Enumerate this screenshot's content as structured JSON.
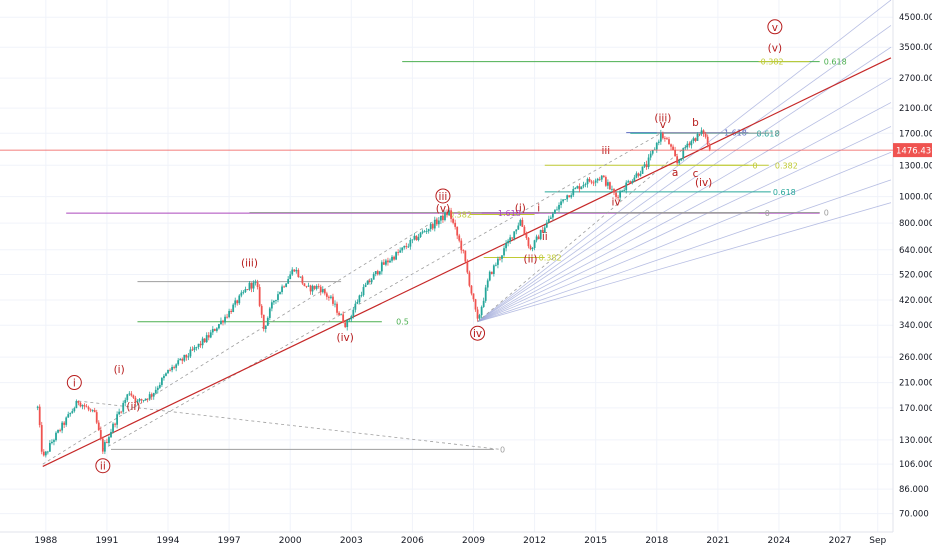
{
  "colors": {
    "background": "#ffffff",
    "grid": "#f0f3fa",
    "wave_label": "#b71c1c",
    "trendline": "#c62828",
    "price_line": "#ef5350",
    "price_tag_bg": "#ef5350",
    "candle_up": "#26a69a",
    "candle_down": "#ef5350",
    "axis_text": "#131722",
    "fib_gray": "#9e9e9e",
    "fib_green": "#4caf50",
    "fib_yellow": "#c0ca33",
    "fib_teal": "#26a69a",
    "fib_blue": "#5c6bc0",
    "fib_purple": "#ab47bc",
    "fan_line": "#9fa8da",
    "dash_line": "#9e9e9e"
  },
  "chart_data": {
    "type": "line",
    "scale": "log",
    "x_ticks": [
      "1988",
      "1991",
      "1994",
      "1997",
      "2000",
      "2003",
      "2006",
      "2009",
      "2012",
      "2015",
      "2018",
      "2021",
      "2024",
      "2027",
      "Sep"
    ],
    "y_ticks": [
      "4500.000",
      "3500.000",
      "2700.000",
      "2100.000",
      "1700.000",
      "1300.000",
      "1000.000",
      "800.000",
      "640.000",
      "520.000",
      "420.000",
      "340.000",
      "260.000",
      "210.000",
      "170.000",
      "130.000",
      "106.000",
      "86.000",
      "70.000"
    ],
    "ylim": [
      60,
      5200
    ],
    "current_price": {
      "label": "1476.431",
      "value": 1476.431
    },
    "series": [
      {
        "points": [
          [
            1987.6,
            170
          ],
          [
            1987.85,
            110
          ],
          [
            1988.3,
            128
          ],
          [
            1989.6,
            180
          ],
          [
            1990.4,
            160
          ],
          [
            1990.8,
            120
          ],
          [
            1991.5,
            158
          ],
          [
            1992.1,
            195
          ],
          [
            1992.5,
            178
          ],
          [
            1993.2,
            190
          ],
          [
            1994.0,
            230
          ],
          [
            1995.0,
            265
          ],
          [
            1996.0,
            310
          ],
          [
            1997.0,
            380
          ],
          [
            1998.0,
            475
          ],
          [
            1998.35,
            480
          ],
          [
            1998.7,
            330
          ],
          [
            1999.2,
            420
          ],
          [
            2000.2,
            550
          ],
          [
            2000.8,
            460
          ],
          [
            2001.4,
            470
          ],
          [
            2002.0,
            420
          ],
          [
            2002.75,
            340
          ],
          [
            2003.5,
            450
          ],
          [
            2004.5,
            560
          ],
          [
            2005.5,
            640
          ],
          [
            2006.5,
            740
          ],
          [
            2007.5,
            840
          ],
          [
            2007.8,
            880
          ],
          [
            2008.5,
            620
          ],
          [
            2009.2,
            350
          ],
          [
            2009.8,
            520
          ],
          [
            2010.5,
            640
          ],
          [
            2011.3,
            820
          ],
          [
            2011.8,
            640
          ],
          [
            2012.5,
            780
          ],
          [
            2013.5,
            1000
          ],
          [
            2014.5,
            1130
          ],
          [
            2015.3,
            1180
          ],
          [
            2016.0,
            1000
          ],
          [
            2016.6,
            1130
          ],
          [
            2017.5,
            1300
          ],
          [
            2018.2,
            1680
          ],
          [
            2018.6,
            1560
          ],
          [
            2019.0,
            1320
          ],
          [
            2019.5,
            1560
          ],
          [
            2020.3,
            1720
          ],
          [
            2020.6,
            1476.431
          ]
        ]
      }
    ],
    "trendline": {
      "from": [
        1987.85,
        104
      ],
      "to": [
        2029.5,
        3200
      ]
    },
    "wave_labels": [
      {
        "text": "i",
        "x": 1989.4,
        "y": 205,
        "circled": true
      },
      {
        "text": "ii",
        "x": 1990.8,
        "y": 102,
        "circled": true
      },
      {
        "text": "(i)",
        "x": 1991.6,
        "y": 230,
        "circled": false
      },
      {
        "text": "(ii)",
        "x": 1992.3,
        "y": 168,
        "circled": false
      },
      {
        "text": "(iii)",
        "x": 1998.0,
        "y": 560,
        "circled": false
      },
      {
        "text": "(iv)",
        "x": 2002.7,
        "y": 300,
        "circled": false
      },
      {
        "text": "iii",
        "x": 2007.5,
        "y": 980,
        "circled": true
      },
      {
        "text": "(v)",
        "x": 2007.5,
        "y": 885,
        "circled": false
      },
      {
        "text": "iv",
        "x": 2009.2,
        "y": 310,
        "circled": true
      },
      {
        "text": "(i)",
        "x": 2011.3,
        "y": 890,
        "circled": false
      },
      {
        "text": "i",
        "x": 2012.2,
        "y": 890,
        "circled": false
      },
      {
        "text": "ii",
        "x": 2012.5,
        "y": 700,
        "circled": false
      },
      {
        "text": "(ii)",
        "x": 2011.8,
        "y": 580,
        "circled": false
      },
      {
        "text": "iii",
        "x": 2015.5,
        "y": 1440,
        "circled": false
      },
      {
        "text": "iv",
        "x": 2016.0,
        "y": 935,
        "circled": false
      },
      {
        "text": "(iii)",
        "x": 2018.3,
        "y": 1890,
        "circled": false
      },
      {
        "text": "v",
        "x": 2018.3,
        "y": 1790,
        "circled": false
      },
      {
        "text": "a",
        "x": 2018.9,
        "y": 1200,
        "circled": false
      },
      {
        "text": "b",
        "x": 2019.9,
        "y": 1820,
        "circled": false
      },
      {
        "text": "c",
        "x": 2019.9,
        "y": 1190,
        "circled": false
      },
      {
        "text": "(iv)",
        "x": 2020.3,
        "y": 1100,
        "circled": false
      },
      {
        "text": "v",
        "x": 2023.8,
        "y": 4050,
        "circled": true
      },
      {
        "text": "(v)",
        "x": 2023.8,
        "y": 3400,
        "circled": false
      }
    ],
    "fib_lines": [
      {
        "x1": 1991.2,
        "x2": 2010.0,
        "y": 120,
        "label": "0",
        "label_x": 2010.3,
        "color": "fib_gray"
      },
      {
        "x1": 1992.5,
        "x2": 2002.5,
        "y": 490,
        "label": "0",
        "label_x": 2003.8,
        "color": "fib_gray"
      },
      {
        "x1": 1992.5,
        "x2": 2004.5,
        "y": 350,
        "label": "0.5",
        "label_x": 2005.2,
        "color": "fib_green"
      },
      {
        "x1": 1989.0,
        "x2": 2026.0,
        "y": 870,
        "label": "",
        "label_x": 0,
        "color": "fib_purple"
      },
      {
        "x1": 1998.0,
        "x2": 2026.0,
        "y": 875,
        "label": "0",
        "label_x": 2026.2,
        "color": "fib_gray"
      },
      {
        "x1": 2008.8,
        "x2": 2012.0,
        "y": 860,
        "label": "0.382",
        "label_x": 2007.8,
        "color": "fib_yellow"
      },
      {
        "x1": 2009.4,
        "x2": 2012.2,
        "y": 870,
        "label": "1.618",
        "label_x": 2010.2,
        "color": "fib_purple"
      },
      {
        "x1": 2016.0,
        "x2": 2023.0,
        "y": 870,
        "label": "0",
        "label_x": 2023.3,
        "color": "fib_gray"
      },
      {
        "x1": 2009.5,
        "x2": 2012.5,
        "y": 600,
        "label": "0.382",
        "label_x": 2012.2,
        "color": "fib_yellow"
      },
      {
        "x1": 2012.5,
        "x2": 2023.6,
        "y": 1040,
        "label": "0.618",
        "label_x": 2023.7,
        "color": "fib_teal"
      },
      {
        "x1": 2012.5,
        "x2": 2022.5,
        "y": 1300,
        "label": "0",
        "label_x": 2022.7,
        "color": "fib_yellow"
      },
      {
        "x1": 2019.0,
        "x2": 2023.5,
        "y": 1300,
        "label": "0.382",
        "label_x": 2023.8,
        "color": "fib_yellow"
      },
      {
        "x1": 2016.5,
        "x2": 2022.5,
        "y": 1710,
        "label": "1.618",
        "label_x": 2021.3,
        "color": "fib_blue"
      },
      {
        "x1": 2016.7,
        "x2": 2023.5,
        "y": 1700,
        "label": "0.618",
        "label_x": 2022.9,
        "color": "fib_teal"
      },
      {
        "x1": 2018.0,
        "x2": 2023.7,
        "y": 1705,
        "label": "0",
        "label_x": 2023.8,
        "color": "fib_gray"
      },
      {
        "x1": 2005.5,
        "x2": 2026.0,
        "y": 3100,
        "label": "0.618",
        "label_x": 2026.2,
        "color": "fib_green"
      },
      {
        "x1": 2023.0,
        "x2": 2025.5,
        "y": 3100,
        "label": "0.382",
        "label_x": 2023.1,
        "color": "fib_yellow"
      }
    ],
    "fan_lines": [
      {
        "from": [
          2009.2,
          350
        ],
        "to": [
          2029.5,
          5200
        ]
      },
      {
        "from": [
          2009.2,
          350
        ],
        "to": [
          2029.5,
          4200
        ]
      },
      {
        "from": [
          2009.2,
          350
        ],
        "to": [
          2029.5,
          3500
        ]
      },
      {
        "from": [
          2009.2,
          350
        ],
        "to": [
          2029.5,
          2700
        ]
      },
      {
        "from": [
          2009.2,
          350
        ],
        "to": [
          2029.5,
          2200
        ]
      },
      {
        "from": [
          2009.2,
          350
        ],
        "to": [
          2029.5,
          1800
        ]
      },
      {
        "from": [
          2009.2,
          350
        ],
        "to": [
          2029.5,
          1450
        ]
      },
      {
        "from": [
          2009.2,
          350
        ],
        "to": [
          2029.5,
          1150
        ]
      },
      {
        "from": [
          2009.2,
          350
        ],
        "to": [
          2029.5,
          950
        ]
      }
    ],
    "dashed_lines": [
      {
        "from": [
          1987.85,
          106
        ],
        "to": [
          2007.8,
          880
        ]
      },
      {
        "from": [
          1990.8,
          120
        ],
        "to": [
          2018.2,
          1700
        ]
      },
      {
        "from": [
          1989.6,
          180
        ],
        "to": [
          2010.3,
          120
        ]
      },
      {
        "from": [
          2009.2,
          350
        ],
        "to": [
          2020.3,
          1720
        ]
      }
    ]
  }
}
